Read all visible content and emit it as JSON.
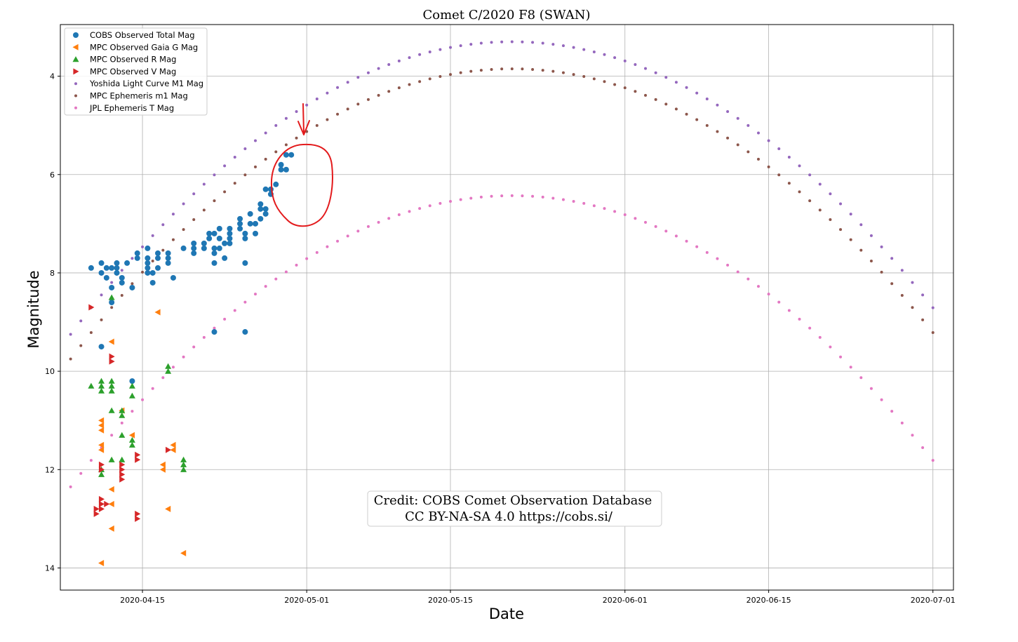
{
  "chart_data": {
    "type": "scatter",
    "title": "Comet C/2020 F8 (SWAN)",
    "xlabel": "Date",
    "ylabel": "Magnitude",
    "x_axis_type": "date",
    "xlim": [
      "2020-04-07",
      "2020-07-03"
    ],
    "ylim": [
      14.45,
      2.95
    ],
    "y_inverted": true,
    "x_ticks": [
      "2020-04-15",
      "2020-05-01",
      "2020-05-15",
      "2020-06-01",
      "2020-06-15",
      "2020-07-01"
    ],
    "y_ticks": [
      4,
      6,
      8,
      10,
      12,
      14
    ],
    "grid": true,
    "legend_position": "upper-left",
    "annotation": {
      "credit": [
        "Credit: COBS Comet Observation Database",
        "CC BY-NA-SA 4.0  https://cobs.si/"
      ],
      "highlight": "red hand-drawn circle and arrow around late-April COBS observations"
    },
    "series": [
      {
        "name": "COBS Observed Total Mag",
        "marker": "circle",
        "color": "#1f77b4",
        "points": [
          [
            "2020-04-10",
            7.9
          ],
          [
            "2020-04-11",
            7.8
          ],
          [
            "2020-04-11",
            8.0
          ],
          [
            "2020-04-11",
            9.5
          ],
          [
            "2020-04-11.5",
            7.9
          ],
          [
            "2020-04-11.5",
            8.1
          ],
          [
            "2020-04-12",
            7.9
          ],
          [
            "2020-04-12",
            8.3
          ],
          [
            "2020-04-12",
            8.6
          ],
          [
            "2020-04-12.5",
            7.8
          ],
          [
            "2020-04-12.5",
            7.9
          ],
          [
            "2020-04-12.5",
            8.0
          ],
          [
            "2020-04-13",
            8.1
          ],
          [
            "2020-04-13",
            8.2
          ],
          [
            "2020-04-13.5",
            7.8
          ],
          [
            "2020-04-14",
            8.3
          ],
          [
            "2020-04-14",
            10.2
          ],
          [
            "2020-04-14.5",
            7.6
          ],
          [
            "2020-04-14.5",
            7.7
          ],
          [
            "2020-04-15.5",
            7.5
          ],
          [
            "2020-04-15.5",
            7.7
          ],
          [
            "2020-04-15.5",
            7.8
          ],
          [
            "2020-04-15.5",
            7.9
          ],
          [
            "2020-04-15.5",
            8.0
          ],
          [
            "2020-04-16",
            8.0
          ],
          [
            "2020-04-16",
            8.2
          ],
          [
            "2020-04-16.5",
            7.6
          ],
          [
            "2020-04-16.5",
            7.7
          ],
          [
            "2020-04-16.5",
            7.9
          ],
          [
            "2020-04-17.5",
            7.6
          ],
          [
            "2020-04-17.5",
            7.7
          ],
          [
            "2020-04-17.5",
            7.8
          ],
          [
            "2020-04-18",
            8.1
          ],
          [
            "2020-04-19",
            7.5
          ],
          [
            "2020-04-20",
            7.4
          ],
          [
            "2020-04-20",
            7.5
          ],
          [
            "2020-04-20",
            7.6
          ],
          [
            "2020-04-21",
            7.4
          ],
          [
            "2020-04-21",
            7.5
          ],
          [
            "2020-04-21.5",
            7.2
          ],
          [
            "2020-04-21.5",
            7.3
          ],
          [
            "2020-04-22",
            7.2
          ],
          [
            "2020-04-22",
            7.5
          ],
          [
            "2020-04-22",
            7.6
          ],
          [
            "2020-04-22",
            7.8
          ],
          [
            "2020-04-22",
            9.2
          ],
          [
            "2020-04-22.5",
            7.1
          ],
          [
            "2020-04-22.5",
            7.3
          ],
          [
            "2020-04-22.5",
            7.5
          ],
          [
            "2020-04-23",
            7.4
          ],
          [
            "2020-04-23",
            7.7
          ],
          [
            "2020-04-23.5",
            7.1
          ],
          [
            "2020-04-23.5",
            7.2
          ],
          [
            "2020-04-23.5",
            7.3
          ],
          [
            "2020-04-23.5",
            7.4
          ],
          [
            "2020-04-24.5",
            6.9
          ],
          [
            "2020-04-24.5",
            7.0
          ],
          [
            "2020-04-24.5",
            7.1
          ],
          [
            "2020-04-25",
            7.2
          ],
          [
            "2020-04-25",
            7.3
          ],
          [
            "2020-04-25",
            7.8
          ],
          [
            "2020-04-25",
            9.2
          ],
          [
            "2020-04-25.5",
            6.8
          ],
          [
            "2020-04-25.5",
            7.0
          ],
          [
            "2020-04-26",
            7.0
          ],
          [
            "2020-04-26",
            7.2
          ],
          [
            "2020-04-26.5",
            6.6
          ],
          [
            "2020-04-26.5",
            6.7
          ],
          [
            "2020-04-26.5",
            6.9
          ],
          [
            "2020-04-27",
            6.3
          ],
          [
            "2020-04-27",
            6.7
          ],
          [
            "2020-04-27",
            6.8
          ],
          [
            "2020-04-27.5",
            6.3
          ],
          [
            "2020-04-27.5",
            6.4
          ],
          [
            "2020-04-28",
            6.2
          ],
          [
            "2020-04-28.5",
            5.8
          ],
          [
            "2020-04-28.5",
            5.9
          ],
          [
            "2020-04-29",
            5.6
          ],
          [
            "2020-04-29",
            5.9
          ],
          [
            "2020-04-29.5",
            5.6
          ]
        ]
      },
      {
        "name": "MPC Observed Gaia G Mag",
        "marker": "triangle-left",
        "color": "#ff7f0e",
        "points": [
          [
            "2020-04-11",
            13.9
          ],
          [
            "2020-04-11",
            11.0
          ],
          [
            "2020-04-11",
            11.1
          ],
          [
            "2020-04-11",
            11.2
          ],
          [
            "2020-04-11",
            11.5
          ],
          [
            "2020-04-11",
            11.6
          ],
          [
            "2020-04-12",
            9.4
          ],
          [
            "2020-04-12",
            12.4
          ],
          [
            "2020-04-12",
            12.7
          ],
          [
            "2020-04-12",
            13.2
          ],
          [
            "2020-04-13",
            10.8
          ],
          [
            "2020-04-14",
            11.3
          ],
          [
            "2020-04-16.5",
            8.8
          ],
          [
            "2020-04-17",
            11.9
          ],
          [
            "2020-04-17",
            12.0
          ],
          [
            "2020-04-17.5",
            12.8
          ],
          [
            "2020-04-18",
            11.5
          ],
          [
            "2020-04-18",
            11.6
          ],
          [
            "2020-04-19",
            13.7
          ]
        ]
      },
      {
        "name": "MPC Observed R Mag",
        "marker": "triangle-up",
        "color": "#2ca02c",
        "points": [
          [
            "2020-04-10",
            10.3
          ],
          [
            "2020-04-11",
            10.2
          ],
          [
            "2020-04-11",
            10.3
          ],
          [
            "2020-04-11",
            10.4
          ],
          [
            "2020-04-11",
            12.0
          ],
          [
            "2020-04-11",
            12.1
          ],
          [
            "2020-04-12",
            8.5
          ],
          [
            "2020-04-12",
            10.2
          ],
          [
            "2020-04-12",
            10.3
          ],
          [
            "2020-04-12",
            10.4
          ],
          [
            "2020-04-12",
            10.8
          ],
          [
            "2020-04-12",
            11.8
          ],
          [
            "2020-04-13",
            10.8
          ],
          [
            "2020-04-13",
            10.9
          ],
          [
            "2020-04-13",
            11.3
          ],
          [
            "2020-04-13",
            11.8
          ],
          [
            "2020-04-14",
            10.3
          ],
          [
            "2020-04-14",
            10.5
          ],
          [
            "2020-04-14",
            11.4
          ],
          [
            "2020-04-14",
            11.5
          ],
          [
            "2020-04-17.5",
            9.9
          ],
          [
            "2020-04-17.5",
            10.0
          ],
          [
            "2020-04-19",
            11.8
          ],
          [
            "2020-04-19",
            11.9
          ],
          [
            "2020-04-19",
            12.0
          ]
        ]
      },
      {
        "name": "MPC Observed V Mag",
        "marker": "triangle-right",
        "color": "#d62728",
        "points": [
          [
            "2020-04-10",
            8.7
          ],
          [
            "2020-04-10.5",
            12.8
          ],
          [
            "2020-04-10.5",
            12.9
          ],
          [
            "2020-04-11",
            11.9
          ],
          [
            "2020-04-11",
            12.0
          ],
          [
            "2020-04-11",
            12.6
          ],
          [
            "2020-04-11",
            12.7
          ],
          [
            "2020-04-11",
            12.8
          ],
          [
            "2020-04-11.5",
            12.7
          ],
          [
            "2020-04-12",
            9.7
          ],
          [
            "2020-04-12",
            9.8
          ],
          [
            "2020-04-13",
            11.9
          ],
          [
            "2020-04-13",
            12.0
          ],
          [
            "2020-04-13",
            12.1
          ],
          [
            "2020-04-13",
            12.2
          ],
          [
            "2020-04-14.5",
            11.7
          ],
          [
            "2020-04-14.5",
            11.8
          ],
          [
            "2020-04-14.5",
            12.9
          ],
          [
            "2020-04-14.5",
            13.0
          ],
          [
            "2020-04-17.5",
            11.6
          ]
        ]
      },
      {
        "name": "Yoshida Light Curve M1 Mag",
        "marker": "dot",
        "color": "#9467bd",
        "model": {
          "type": "parabola",
          "start": "2020-04-08",
          "end": "2020-07-01",
          "step_days": 1,
          "peak_date": "2020-05-21",
          "peak_mag": 3.3,
          "edge_mag": 9.25
        }
      },
      {
        "name": "MPC Ephemeris m1 Mag",
        "marker": "dot",
        "color": "#8c564b",
        "model": {
          "type": "parabola",
          "start": "2020-04-08",
          "end": "2020-07-01",
          "step_days": 1,
          "peak_date": "2020-05-21",
          "peak_mag": 3.85,
          "edge_mag": 9.75
        }
      },
      {
        "name": "JPL Ephemeris T Mag",
        "marker": "dot",
        "color": "#e377c2",
        "model": {
          "type": "parabola",
          "start": "2020-04-08",
          "end": "2020-07-01",
          "step_days": 1,
          "peak_date": "2020-05-21",
          "peak_mag": 6.43,
          "edge_mag": 12.35
        }
      }
    ]
  }
}
